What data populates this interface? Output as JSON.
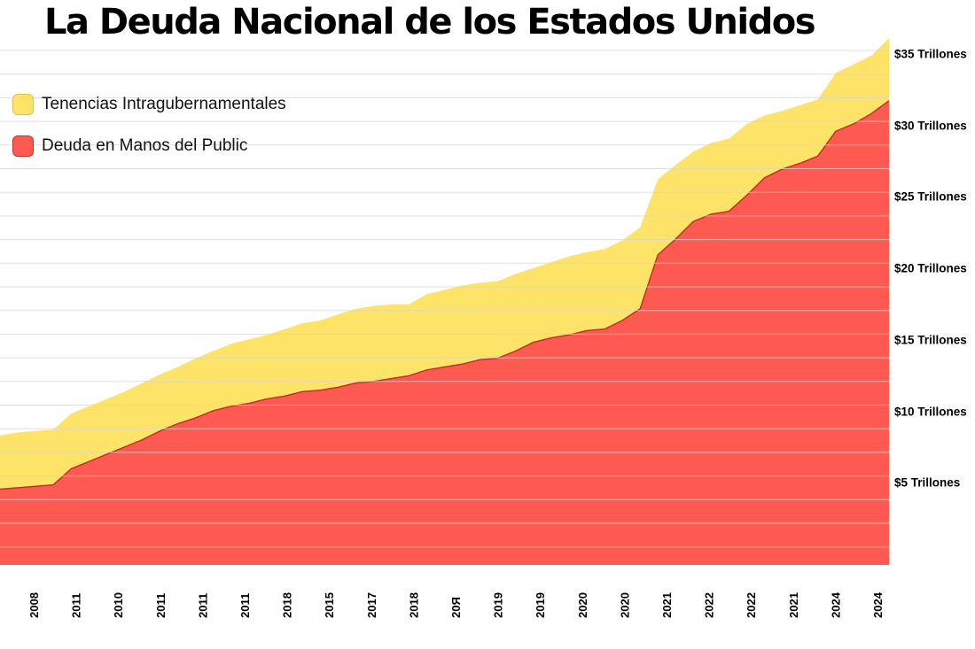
{
  "title": "La Deuda Nacional de los Estados Unidos",
  "legend": {
    "intragov": "Tenencias Intragubernamentales",
    "public": "Deuda en Manos del Public"
  },
  "colors": {
    "intragov": "#fde468",
    "public": "#ff5a52",
    "public_line": "#c4302b",
    "grid": "#d4d4d4"
  },
  "chart_data": {
    "type": "area",
    "stacked": false,
    "title": "La Deuda Nacional de los Estados Unidos",
    "ylabel": "",
    "xlabel": "",
    "ylim": [
      0,
      36
    ],
    "grid": true,
    "legend_position": "top-left",
    "y_axis_position": "right",
    "y_ticks": [
      {
        "value": 5,
        "label": "$5 Trillones"
      },
      {
        "value": 10,
        "label": "$10 Trillones"
      },
      {
        "value": 15,
        "label": "$15 Trillones"
      },
      {
        "value": 20,
        "label": "$20 Trillones"
      },
      {
        "value": 25,
        "label": "$25 Trillones"
      },
      {
        "value": 30,
        "label": "$30 Trillones"
      },
      {
        "value": 35,
        "label": "$35 Trillones"
      }
    ],
    "x_tick_labels": [
      "2008",
      "2011",
      "2010",
      "2011",
      "2011",
      "2011",
      "2018",
      "2015",
      "2017",
      "2018",
      "20Я",
      "2019",
      "2019",
      "2020",
      "2020",
      "2021",
      "2022",
      "2022",
      "2021",
      "2024",
      "2024"
    ],
    "x": [
      0,
      1,
      2,
      3,
      4,
      5,
      6,
      7,
      8,
      9,
      10,
      11,
      12,
      13,
      14,
      15,
      16,
      17,
      18,
      19,
      20,
      21,
      22,
      23,
      24,
      25,
      26,
      27,
      28,
      29,
      30,
      31,
      32,
      33,
      34,
      35,
      36,
      37,
      38,
      39,
      40,
      41,
      42,
      43,
      44,
      45,
      46,
      47,
      48,
      49,
      50
    ],
    "series": [
      {
        "name": "Tenencias Intragubernamentales",
        "description": "total (top edge of yellow area)",
        "values": [
          8.9,
          9.1,
          9.2,
          9.3,
          10.4,
          10.9,
          11.4,
          11.9,
          12.5,
          13.1,
          13.6,
          14.2,
          14.7,
          15.2,
          15.5,
          15.8,
          16.2,
          16.6,
          16.8,
          17.2,
          17.6,
          17.8,
          17.9,
          17.9,
          18.6,
          18.9,
          19.2,
          19.4,
          19.5,
          20.0,
          20.4,
          20.8,
          21.2,
          21.5,
          21.7,
          22.3,
          23.2,
          26.5,
          27.5,
          28.4,
          29.0,
          29.3,
          30.3,
          30.9,
          31.2,
          31.6,
          32.0,
          33.8,
          34.4,
          35.0,
          36.2
        ]
      },
      {
        "name": "Deuda en Manos del Public",
        "values": [
          5.2,
          5.3,
          5.4,
          5.5,
          6.6,
          7.1,
          7.6,
          8.1,
          8.6,
          9.2,
          9.7,
          10.1,
          10.6,
          10.9,
          11.1,
          11.4,
          11.6,
          11.9,
          12.0,
          12.2,
          12.5,
          12.6,
          12.8,
          13.0,
          13.4,
          13.6,
          13.8,
          14.1,
          14.2,
          14.7,
          15.3,
          15.6,
          15.8,
          16.1,
          16.2,
          16.8,
          17.6,
          21.3,
          22.4,
          23.6,
          24.1,
          24.3,
          25.4,
          26.6,
          27.2,
          27.6,
          28.1,
          29.8,
          30.3,
          31.0,
          31.9
        ]
      }
    ]
  }
}
